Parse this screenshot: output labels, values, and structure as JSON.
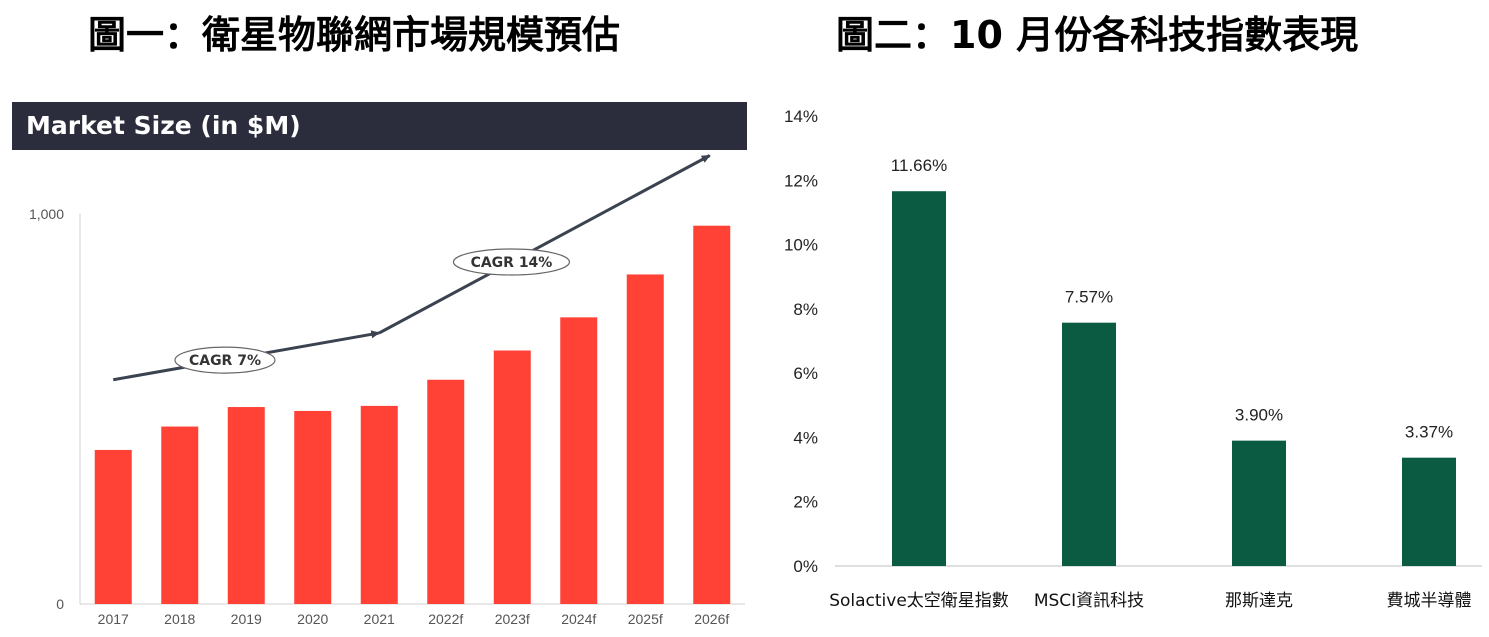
{
  "titles": {
    "fig1": "圖一：衛星物聯網市場規模預估",
    "fig2": "圖二：10 月份各科技指數表現"
  },
  "colors": {
    "bar_red": "#ff4136",
    "bar_green": "#0b5a42",
    "banner": "#2b2d3c",
    "trend": "#3b4250"
  },
  "chart_data": [
    {
      "type": "bar",
      "title": "Market Size (in $M)",
      "categories": [
        "2017",
        "2018",
        "2019",
        "2020",
        "2021",
        "2022f",
        "2023f",
        "2024f",
        "2025f",
        "2026f"
      ],
      "values": [
        395,
        455,
        505,
        495,
        508,
        575,
        650,
        735,
        845,
        970
      ],
      "ylim": [
        0,
        1000
      ],
      "yticks": [
        0,
        1000
      ],
      "ytick_labels": [
        "0",
        "1,000"
      ],
      "annotations": [
        {
          "label": "CAGR 7%",
          "from_category": "2017",
          "to_category": "2021",
          "from_value": 575,
          "to_value": 695
        },
        {
          "label": "CAGR 14%",
          "from_category": "2021",
          "to_category": "2026f",
          "from_value": 695,
          "to_value": 1150
        }
      ],
      "grid": false,
      "legend": "none"
    },
    {
      "type": "bar",
      "categories": [
        "Solactive太空衛星指數",
        "MSCI資訊科技",
        "那斯達克",
        "費城半導體"
      ],
      "values": [
        11.66,
        7.57,
        3.9,
        3.37
      ],
      "data_labels": [
        "11.66%",
        "7.57%",
        "3.90%",
        "3.37%"
      ],
      "ylim": [
        0,
        14
      ],
      "yticks": [
        0,
        2,
        4,
        6,
        8,
        10,
        12,
        14
      ],
      "ytick_labels": [
        "0%",
        "2%",
        "4%",
        "6%",
        "8%",
        "10%",
        "12%",
        "14%"
      ],
      "grid": false,
      "legend": "none"
    }
  ]
}
